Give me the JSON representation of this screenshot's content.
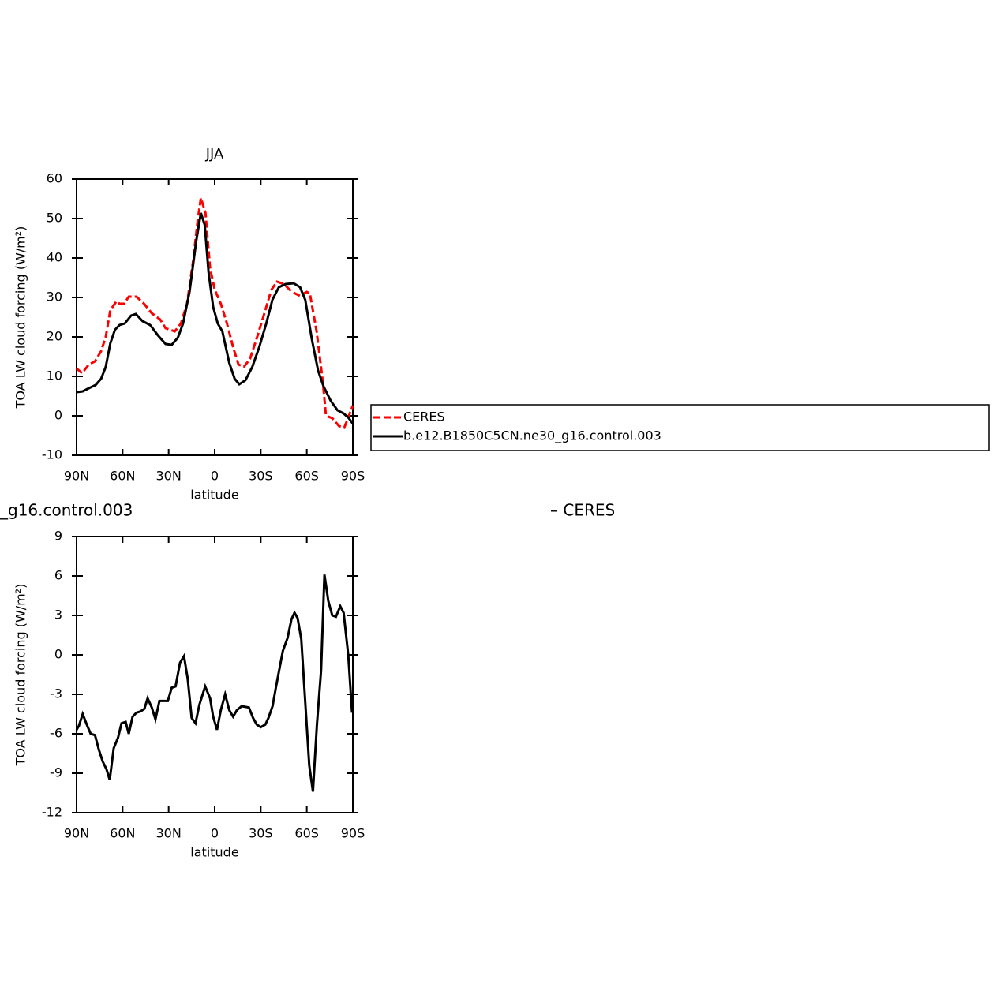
{
  "chart_data": [
    {
      "type": "line",
      "title": "JJA",
      "xlabel": "latitude",
      "ylabel": "TOA LW cloud forcing (W/m²)",
      "xlim": [
        90,
        -90
      ],
      "ylim": [
        -10,
        60
      ],
      "xticks": [
        {
          "value": 90,
          "label": "90N"
        },
        {
          "value": 60,
          "label": "60N"
        },
        {
          "value": 30,
          "label": "30N"
        },
        0,
        {
          "value": -30,
          "label": "30S"
        },
        {
          "value": -60,
          "label": "60S"
        },
        {
          "value": -90,
          "label": "90S"
        }
      ],
      "yticks": [
        -10,
        0,
        10,
        20,
        30,
        40,
        50,
        60
      ],
      "legend": "right",
      "series": [
        {
          "name": "CERES",
          "color": "#ff0000",
          "dash": true,
          "x": [
            90,
            86.4,
            82,
            78,
            74,
            71,
            68,
            64,
            62,
            59,
            56,
            51,
            46,
            41,
            35.5,
            32,
            26,
            22,
            18,
            14,
            11,
            9,
            6,
            3,
            0,
            -4,
            -8,
            -12,
            -15.5,
            -19,
            -23,
            -28,
            -33,
            -37,
            -40.6,
            -45,
            -50.4,
            -55.5,
            -60,
            -62,
            -66.4,
            -70.5,
            -72.5,
            -76.6,
            -81,
            -84.4,
            -90
          ],
          "values": [
            12,
            10.8,
            13,
            13.8,
            16.4,
            20,
            26.8,
            29,
            28.4,
            28.4,
            30.2,
            30.2,
            28.4,
            26,
            24.4,
            22.2,
            21.4,
            23.4,
            28.4,
            39.4,
            49.8,
            55.2,
            51.4,
            37.4,
            32,
            28.4,
            23.4,
            17.4,
            13,
            12.4,
            14.4,
            20.4,
            26.8,
            32,
            34,
            33.4,
            31.4,
            30.4,
            31.4,
            31,
            21.4,
            8.4,
            0,
            -0.6,
            -2.6,
            -3,
            2.6
          ]
        },
        {
          "name": "b.e12.B1850C5CN.ne30_g16.control.003",
          "color": "#000000",
          "dash": false,
          "x": [
            90,
            86,
            82,
            77.6,
            74,
            71,
            68,
            65,
            62,
            58.6,
            54.5,
            51.4,
            47,
            42,
            37,
            32,
            28,
            24,
            20.6,
            16.4,
            12,
            9,
            6.5,
            4,
            1,
            -2,
            -5,
            -9.5,
            -13,
            -16,
            -20,
            -24.5,
            -29,
            -33.6,
            -37.6,
            -41.8,
            -46.3,
            -51.4,
            -55.6,
            -59,
            -63.3,
            -67.4,
            -71,
            -75.6,
            -80,
            -84,
            -87.4,
            -90
          ],
          "values": [
            6,
            6.2,
            7,
            7.8,
            9.4,
            12.4,
            18.4,
            21.8,
            23,
            23.4,
            25.4,
            25.8,
            24,
            23,
            20.4,
            18.2,
            18,
            19.8,
            23.4,
            31.4,
            44.4,
            51.4,
            48.4,
            36.4,
            27.6,
            23.4,
            21.4,
            13.4,
            9.4,
            8,
            9,
            12.4,
            17.4,
            23.4,
            29.4,
            32.6,
            33.4,
            33.6,
            32.6,
            29.4,
            19.4,
            11.4,
            7.4,
            3.8,
            1.4,
            0.6,
            -0.6,
            -2
          ]
        }
      ]
    },
    {
      "type": "line",
      "title": [
        "_g16.control.003",
        "– CERES"
      ],
      "xlabel": "latitude",
      "ylabel": "TOA LW cloud forcing (W/m²)",
      "xlim": [
        90,
        -90
      ],
      "ylim": [
        -12,
        9
      ],
      "xticks": [
        {
          "value": 90,
          "label": "90N"
        },
        {
          "value": 60,
          "label": "60N"
        },
        {
          "value": 30,
          "label": "30N"
        },
        0,
        {
          "value": -30,
          "label": "30S"
        },
        {
          "value": -60,
          "label": "60S"
        },
        {
          "value": -90,
          "label": "90S"
        }
      ],
      "yticks": [
        -12,
        -9,
        -6,
        -3,
        0,
        3,
        6,
        9
      ],
      "series": [
        {
          "color": "#000000",
          "dash": false,
          "x": [
            90,
            88.5,
            86,
            83,
            80.8,
            78,
            75.5,
            73,
            70.5,
            68.4,
            65.8,
            63,
            60.7,
            58,
            56,
            53.5,
            51,
            48.3,
            45.8,
            43.7,
            41,
            38.6,
            36,
            33,
            30.5,
            28,
            25.5,
            22.6,
            20,
            17.6,
            15,
            12.5,
            10,
            6.2,
            3,
            1,
            -1.5,
            -4,
            -6.8,
            -9.5,
            -12,
            -14.5,
            -17.6,
            -22.3,
            -25,
            -27.4,
            -30,
            -33,
            -35,
            -37.7,
            -40,
            -44.4,
            -47.5,
            -50,
            -52,
            -54,
            -56.4,
            -59,
            -61.6,
            -64,
            -66.6,
            -69.3,
            -71.5,
            -74,
            -76.6,
            -79,
            -81.8,
            -84,
            -87,
            -89.5
          ],
          "values": [
            -5.7,
            -5.4,
            -4.5,
            -5.4,
            -6,
            -6.1,
            -7.2,
            -8.1,
            -8.7,
            -9.5,
            -7.1,
            -6.3,
            -5.2,
            -5.1,
            -6,
            -4.7,
            -4.4,
            -4.3,
            -4.1,
            -3.3,
            -4,
            -4.9,
            -3.5,
            -3.5,
            -3.5,
            -2.5,
            -2.4,
            -0.6,
            -0.1,
            -1.8,
            -4.8,
            -5.2,
            -3.8,
            -2.4,
            -3.3,
            -4.7,
            -5.7,
            -4.2,
            -3,
            -4.2,
            -4.7,
            -4.2,
            -3.9,
            -4,
            -4.8,
            -5.3,
            -5.5,
            -5.3,
            -4.8,
            -3.9,
            -2.4,
            0.3,
            1.3,
            2.7,
            3.2,
            2.8,
            1.2,
            -3.6,
            -8.4,
            -10.4,
            -5.3,
            -1.2,
            6.1,
            4.1,
            3,
            2.9,
            3.7,
            3.2,
            0,
            -4.4
          ]
        }
      ]
    }
  ]
}
